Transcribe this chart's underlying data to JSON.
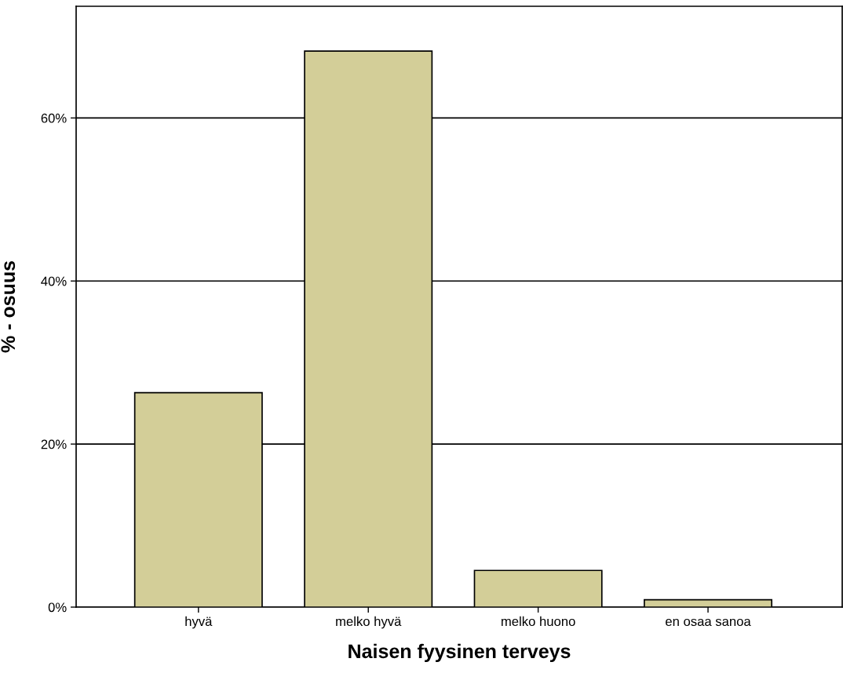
{
  "chart_data": {
    "type": "bar",
    "xlabel": "Naisen fyysinen terveys",
    "ylabel": "% - osuus",
    "categories": [
      "hyvä",
      "melko hyvä",
      "melko huono",
      "en osaa sanoa"
    ],
    "values": [
      26.3,
      68.2,
      4.5,
      0.9
    ],
    "color": "#d3ce98",
    "ylim": [
      0,
      73.7
    ],
    "yticks": [
      {
        "value": 0,
        "label": "0%"
      },
      {
        "value": 20,
        "label": "20%"
      },
      {
        "value": 40,
        "label": "40%"
      },
      {
        "value": 60,
        "label": "60%"
      }
    ],
    "grid": "y",
    "legend": false
  }
}
